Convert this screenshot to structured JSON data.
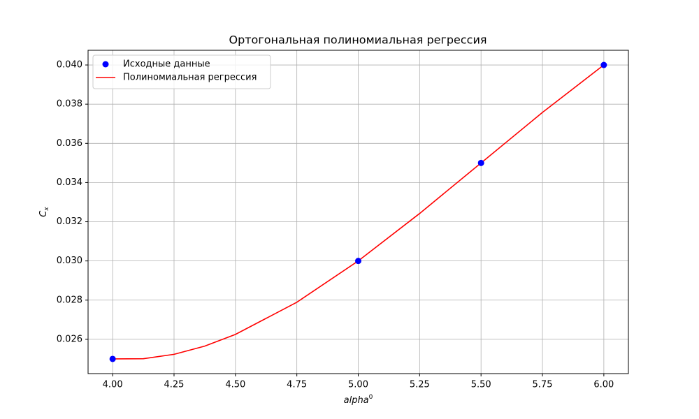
{
  "chart_data": {
    "type": "scatter-line",
    "title": "Ортогональная полиномиальная регрессия",
    "xlabel": "alpha",
    "xlabel_sup": "0",
    "ylabel": "C",
    "ylabel_sub": "x",
    "xlim": [
      3.9,
      6.1
    ],
    "ylim": [
      0.02425,
      0.04075
    ],
    "xticks": [
      {
        "value": 4,
        "label": "4.00"
      },
      {
        "value": 4.25,
        "label": "4.25"
      },
      {
        "value": 4.5,
        "label": "4.50"
      },
      {
        "value": 4.75,
        "label": "4.75"
      },
      {
        "value": 5,
        "label": "5.00"
      },
      {
        "value": 5.25,
        "label": "5.25"
      },
      {
        "value": 5.5,
        "label": "5.50"
      },
      {
        "value": 5.75,
        "label": "5.75"
      },
      {
        "value": 6,
        "label": "6.00"
      }
    ],
    "yticks": [
      {
        "value": 0.026,
        "label": "0.026"
      },
      {
        "value": 0.028,
        "label": "0.028"
      },
      {
        "value": 0.03,
        "label": "0.030"
      },
      {
        "value": 0.032,
        "label": "0.032"
      },
      {
        "value": 0.034,
        "label": "0.034"
      },
      {
        "value": 0.036,
        "label": "0.036"
      },
      {
        "value": 0.038,
        "label": "0.038"
      },
      {
        "value": 0.04,
        "label": "0.040"
      }
    ],
    "grid": true,
    "legend": "upper left",
    "series": [
      {
        "name": "Исходные данные",
        "kind": "scatter",
        "color": "#0000ff",
        "x": [
          4,
          5,
          5.5,
          6
        ],
        "values": [
          0.025,
          0.03,
          0.035,
          0.04
        ]
      },
      {
        "name": "Полиномиальная регрессия",
        "kind": "line",
        "color": "#ff0000",
        "x": [
          4,
          4.125,
          4.25,
          4.375,
          4.5,
          4.75,
          5,
          5.25,
          5.5,
          5.75,
          6
        ],
        "values": [
          0.025,
          0.02501,
          0.025234,
          0.025654,
          0.02625,
          0.027891,
          0.03,
          0.032422,
          0.035,
          0.037578,
          0.04
        ]
      }
    ]
  }
}
